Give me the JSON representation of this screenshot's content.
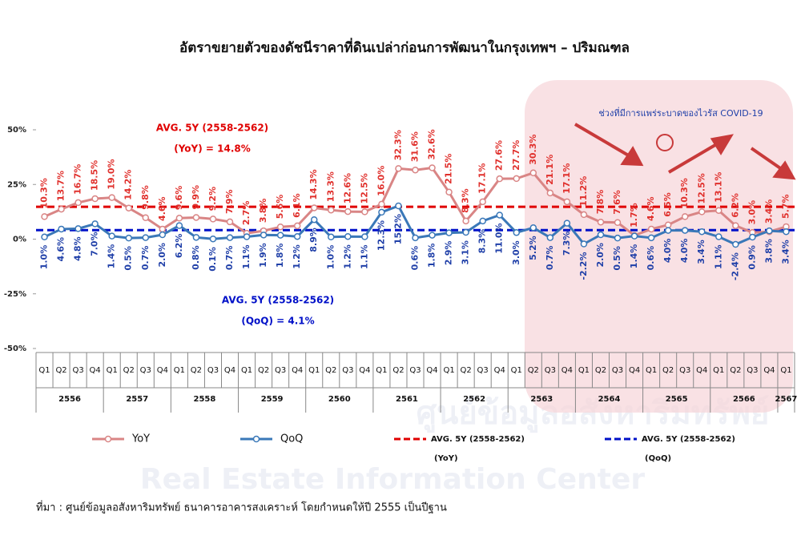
{
  "chart_data": {
    "type": "line",
    "title": "อัตราขยายตัวของดัชนีราคาที่ดินเปล่าก่อนการพัฒนาในกรุงเทพฯ – ปริมณฑล",
    "categories": [
      "Q1",
      "Q2",
      "Q3",
      "Q4",
      "Q1",
      "Q2",
      "Q3",
      "Q4",
      "Q1",
      "Q2",
      "Q3",
      "Q4",
      "Q1",
      "Q2",
      "Q3",
      "Q4",
      "Q1",
      "Q2",
      "Q3",
      "Q4",
      "Q1",
      "Q2",
      "Q3",
      "Q4",
      "Q1",
      "Q2",
      "Q3",
      "Q4",
      "Q1",
      "Q2",
      "Q3",
      "Q4",
      "Q1",
      "Q2",
      "Q3",
      "Q4",
      "Q1",
      "Q2",
      "Q3",
      "Q4",
      "Q1",
      "Q2",
      "Q3",
      "Q4",
      "Q1"
    ],
    "years": [
      "2556",
      "2557",
      "2558",
      "2559",
      "2560",
      "2561",
      "2562",
      "2563",
      "2564",
      "2565",
      "2566",
      "2567"
    ],
    "series": [
      {
        "name": "YoY",
        "color": "#d98585",
        "label_color": "#e0302c",
        "values": [
          10.3,
          13.7,
          16.7,
          18.5,
          19.0,
          14.2,
          9.8,
          4.6,
          9.6,
          9.9,
          9.2,
          7.9,
          2.7,
          3.8,
          5.6,
          6.1,
          14.3,
          13.3,
          12.6,
          12.5,
          16.0,
          32.3,
          31.6,
          32.6,
          21.5,
          8.3,
          17.1,
          27.6,
          27.7,
          30.3,
          21.1,
          17.1,
          11.2,
          7.8,
          7.6,
          1.7,
          4.6,
          6.5,
          10.3,
          12.5,
          13.1,
          6.2,
          3.0,
          3.4,
          5.7
        ],
        "value_labels": [
          "10.3%",
          "13.7%",
          "16.7%",
          "18.5%",
          "19.0%",
          "14.2%",
          "9.8%",
          "4.6%",
          "9.6%",
          "9.9%",
          "9.2%",
          "7.9%",
          "2.7%",
          "3.8%",
          "5.6%",
          "6.1%",
          "14.3%",
          "13.3%",
          "12.6%",
          "12.5%",
          "16.0%",
          "32.3%",
          "31.6%",
          "32.6%",
          "21.5%",
          "8.3%",
          "17.1%",
          "27.6%",
          "27.7%",
          "30.3%",
          "21.1%",
          "17.1%",
          "11.2%",
          "7.8%",
          "7.6%",
          "1.7%",
          "4.6%",
          "6.5%",
          "10.3%",
          "12.5%",
          "13.1%",
          "6.2%",
          "3.0%",
          "3.4%",
          "5.7%"
        ]
      },
      {
        "name": "QoQ",
        "color": "#3a78b8",
        "label_color": "#1f3fa8",
        "values": [
          1.0,
          4.6,
          4.8,
          7.0,
          1.4,
          0.5,
          0.7,
          2.0,
          6.2,
          0.8,
          0.1,
          0.7,
          1.1,
          1.9,
          1.8,
          1.2,
          8.9,
          1.0,
          1.2,
          1.1,
          12.3,
          15.2,
          0.6,
          1.8,
          2.9,
          3.1,
          8.3,
          11.0,
          3.0,
          5.2,
          0.7,
          7.3,
          -2.2,
          2.0,
          0.5,
          1.4,
          0.6,
          4.0,
          4.0,
          3.4,
          1.1,
          -2.4,
          0.9,
          3.8,
          3.4
        ],
        "value_labels": [
          "1.0%",
          "4.6%",
          "4.8%",
          "7.0%",
          "1.4%",
          "0.5%",
          "0.7%",
          "2.0%",
          "6.2%",
          "0.8%",
          "0.1%",
          "0.7%",
          "1.1%",
          "1.9%",
          "1.8%",
          "1.2%",
          "8.9%",
          "1.0%",
          "1.2%",
          "1.1%",
          "12.3%",
          "15.2%",
          "0.6%",
          "1.8%",
          "2.9%",
          "3.1%",
          "8.3%",
          "11.0%",
          "3.0%",
          "5.2%",
          "0.7%",
          "7.3%",
          "-2.2%",
          "2.0%",
          "0.5%",
          "1.4%",
          "0.6%",
          "4.0%",
          "4.0%",
          "3.4%",
          "1.1%",
          "-2.4%",
          "0.9%",
          "3.8%",
          "3.4%"
        ]
      }
    ],
    "reference_lines": [
      {
        "name": "AVG. 5Y (2558-2562)",
        "legend_note": "(YoY)",
        "value": 14.8,
        "color": "#e00000",
        "annotation": "(YoY) = 14.8%"
      },
      {
        "name": "AVG. 5Y (2558-2562)",
        "legend_note": "(QoQ)",
        "value": 4.1,
        "color": "#0010c8",
        "annotation": "(QoQ) = 4.1%"
      }
    ],
    "covid_annotation": "ช่วงที่มีการแพร่ระบาดของไวรัส COVID-19",
    "ylim": [
      -50,
      50
    ],
    "yticks": [
      {
        "value": 50,
        "label": "50%"
      },
      {
        "value": 25,
        "label": "25%"
      },
      {
        "value": 0,
        "label": "0%"
      },
      {
        "value": -25,
        "label": "-25%"
      },
      {
        "value": -50,
        "label": "-50%"
      }
    ],
    "source": "ที่มา : ศูนย์ข้อมูลอสังหาริมทรัพย์ ธนาคารอาคารสงเคราะห์  โดยกำหนดให้ปี 2555 เป็นปีฐาน",
    "watermark": [
      "ศูนย์ข้อมูลอสังหาริมทรัพย์",
      "Real Estate Information Center"
    ]
  }
}
